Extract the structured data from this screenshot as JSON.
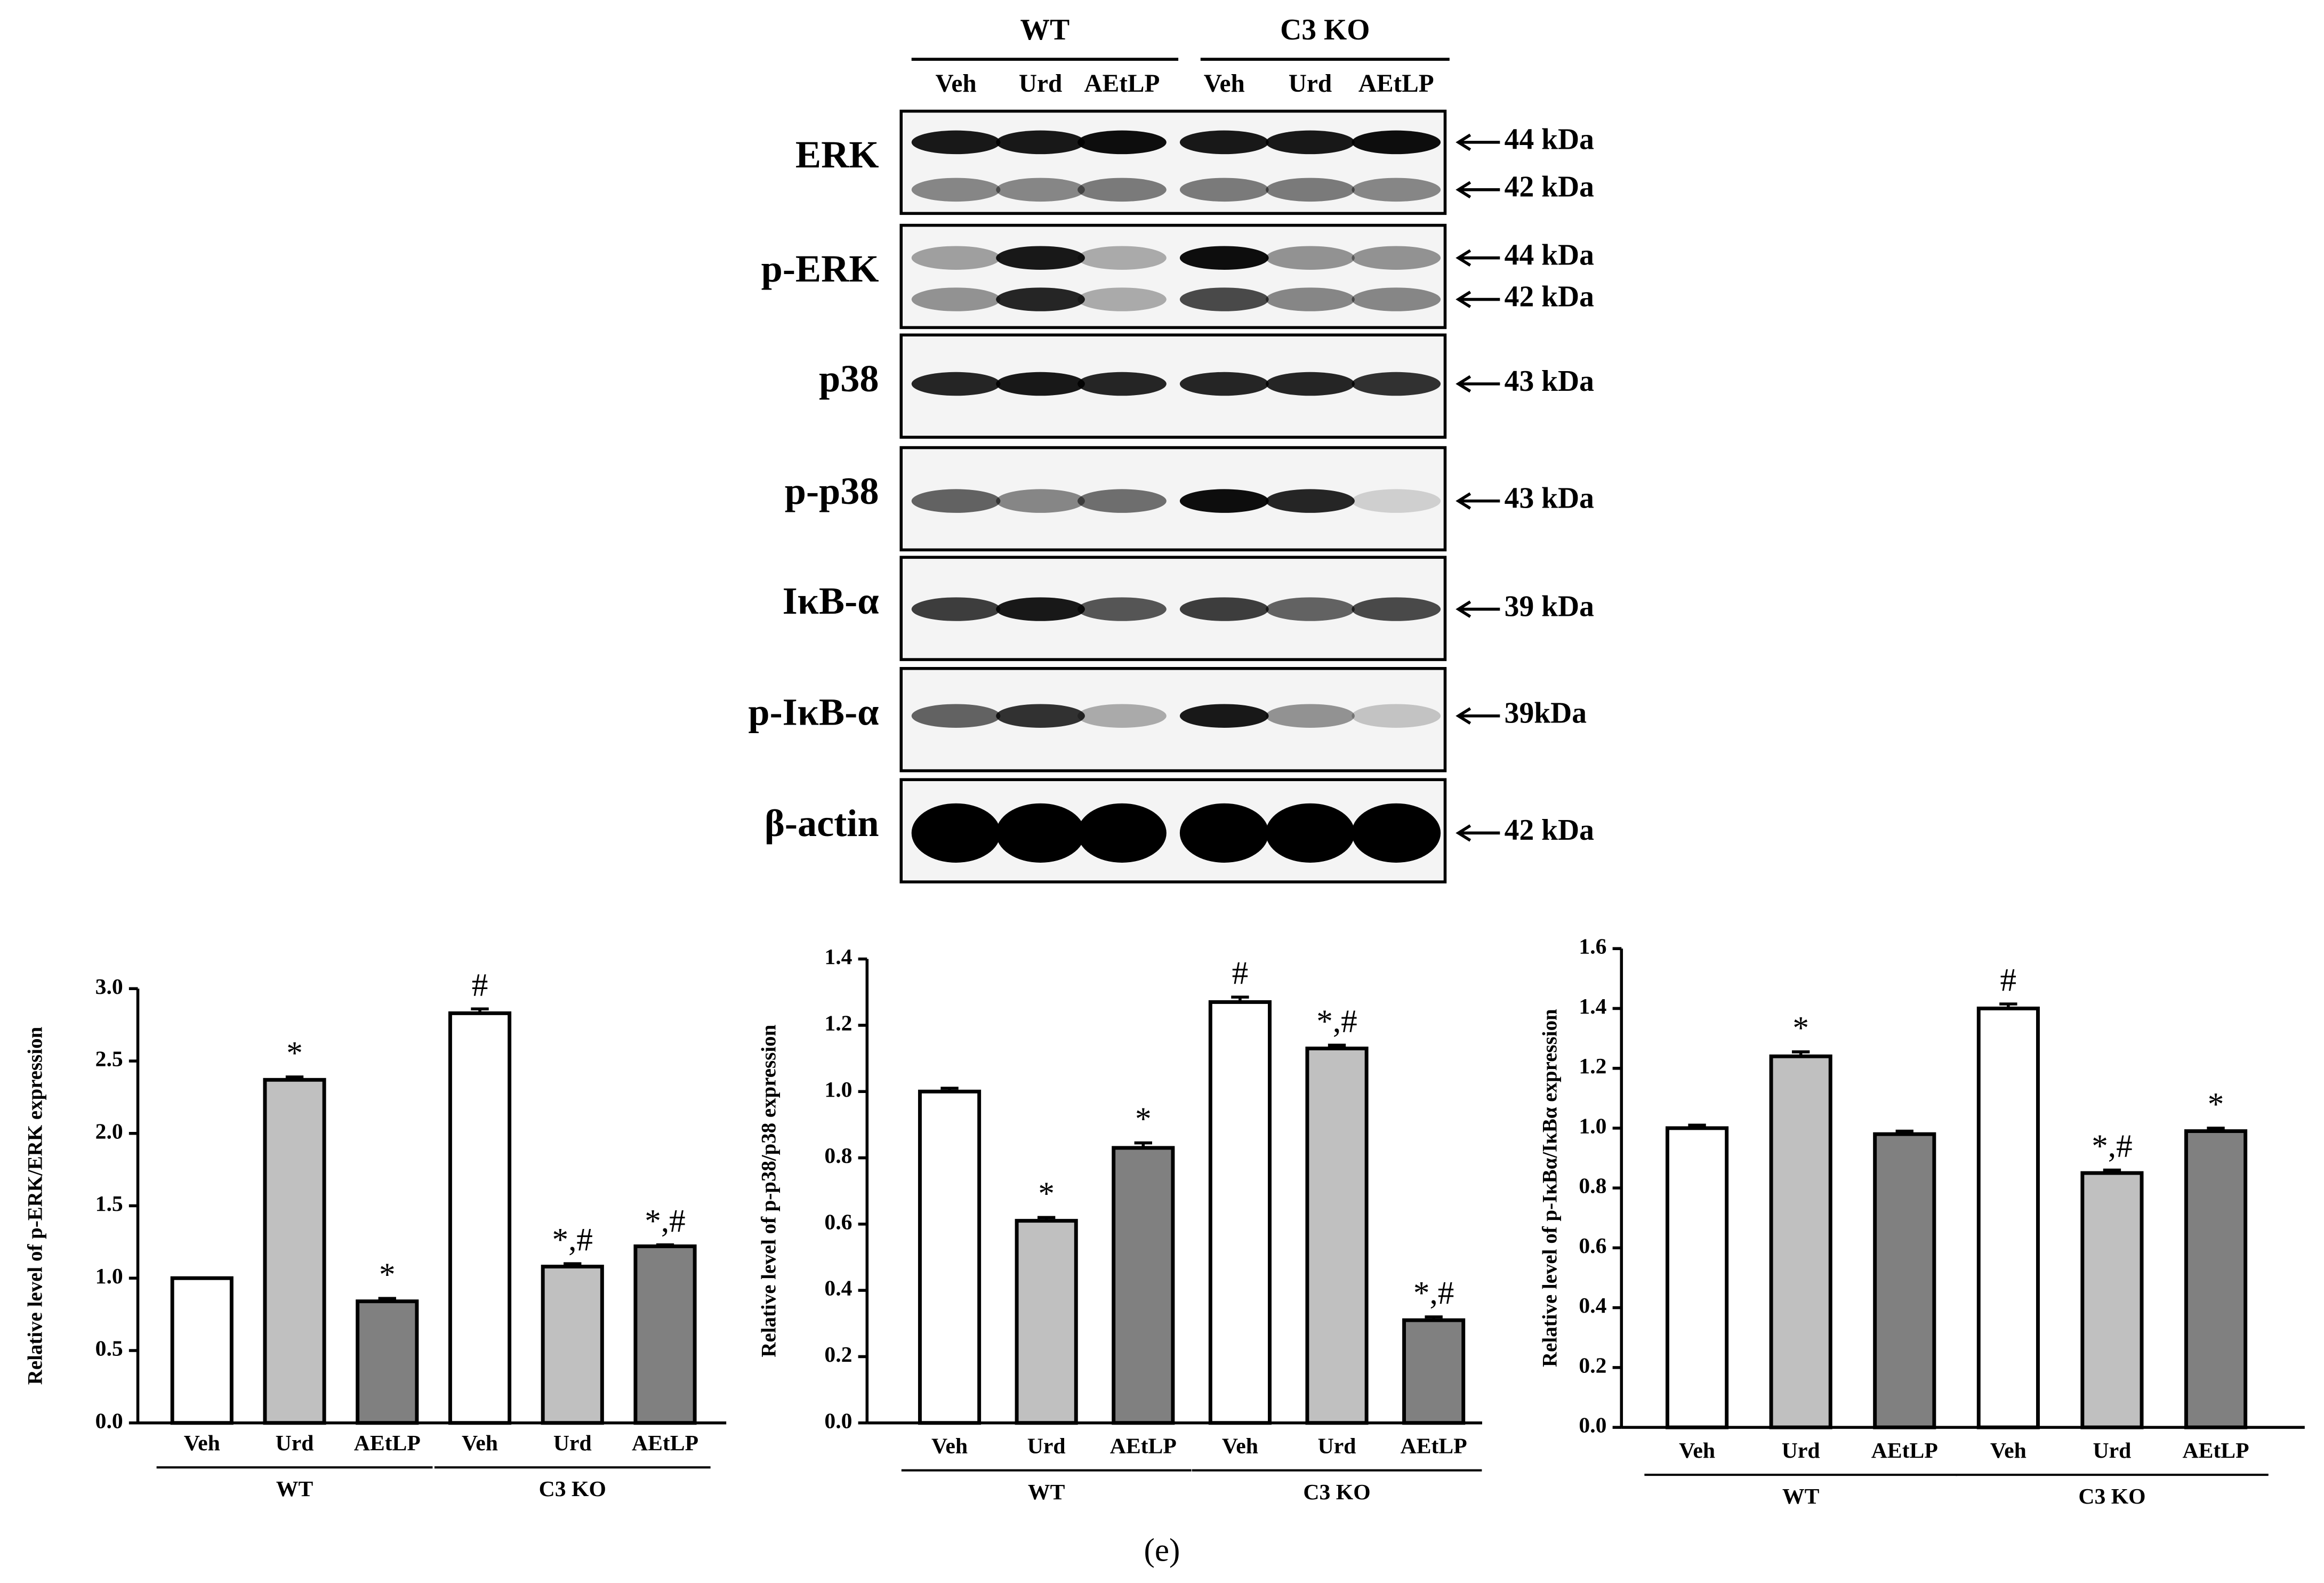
{
  "blot": {
    "groups": [
      "WT",
      "C3 KO"
    ],
    "lanes": [
      "Veh",
      "Urd",
      "AEtLP",
      "Veh",
      "Urd",
      "AEtLP"
    ],
    "rows": [
      {
        "label": "ERK",
        "markers": [
          "44 kDa",
          "42 kDa"
        ]
      },
      {
        "label": "p-ERK",
        "markers": [
          "44 kDa",
          "42 kDa"
        ]
      },
      {
        "label": "p38",
        "markers": [
          "43 kDa"
        ]
      },
      {
        "label": "p-p38",
        "markers": [
          "43 kDa"
        ]
      },
      {
        "label": "IκB-α",
        "markers": [
          "39 kDa"
        ]
      },
      {
        "label": "p-IκB-α",
        "markers": [
          "39kDa"
        ]
      },
      {
        "label": "β-actin",
        "markers": [
          "42 kDa"
        ]
      }
    ]
  },
  "chart_data": [
    {
      "type": "bar",
      "y_label": "Relative level of p-ERK/ERK expression",
      "categories": [
        "Veh",
        "Urd",
        "AEtLP",
        "Veh",
        "Urd",
        "AEtLP"
      ],
      "groups": [
        "WT",
        "C3 KO"
      ],
      "values": [
        1.0,
        2.37,
        0.84,
        2.83,
        1.08,
        1.22
      ],
      "errors": [
        0.0,
        0.02,
        0.02,
        0.03,
        0.02,
        0.01
      ],
      "colors": [
        "#ffffff",
        "#c0c0c0",
        "#808080",
        "#ffffff",
        "#c0c0c0",
        "#808080"
      ],
      "annotations": [
        null,
        "*",
        "*",
        "#",
        "*,#",
        "*,#"
      ],
      "ylim": [
        0,
        3.0
      ],
      "yticks": [
        {
          "value": 0,
          "label": "0.0"
        },
        0.5,
        {
          "value": 1,
          "label": "1.0"
        },
        1.5,
        {
          "value": 2,
          "label": "2.0"
        },
        2.5,
        {
          "value": 3,
          "label": "3.0"
        }
      ]
    },
    {
      "type": "bar",
      "y_label": "Relative level of p-p38/p38 expression",
      "categories": [
        "Veh",
        "Urd",
        "AEtLP",
        "Veh",
        "Urd",
        "AEtLP"
      ],
      "groups": [
        "WT",
        "C3 KO"
      ],
      "values": [
        1.0,
        0.61,
        0.83,
        1.27,
        1.13,
        0.31
      ],
      "errors": [
        0.01,
        0.01,
        0.015,
        0.015,
        0.01,
        0.01
      ],
      "colors": [
        "#ffffff",
        "#c0c0c0",
        "#808080",
        "#ffffff",
        "#c0c0c0",
        "#808080"
      ],
      "annotations": [
        null,
        "*",
        "*",
        "#",
        "*,#",
        "*,#"
      ],
      "ylim": [
        0,
        1.4
      ],
      "yticks": [
        {
          "value": 0,
          "label": "0.0"
        },
        0.2,
        0.4,
        0.6,
        0.8,
        {
          "value": 1,
          "label": "1.0"
        },
        1.2,
        1.4
      ]
    },
    {
      "type": "bar",
      "y_label": "Relative level of p-IκBα/IκBα expression",
      "categories": [
        "Veh",
        "Urd",
        "AEtLP",
        "Veh",
        "Urd",
        "AEtLP"
      ],
      "groups": [
        "WT",
        "C3 KO"
      ],
      "values": [
        1.0,
        1.24,
        0.98,
        1.4,
        0.85,
        0.99
      ],
      "errors": [
        0.01,
        0.015,
        0.01,
        0.015,
        0.01,
        0.01
      ],
      "colors": [
        "#ffffff",
        "#c0c0c0",
        "#808080",
        "#ffffff",
        "#c0c0c0",
        "#808080"
      ],
      "annotations": [
        null,
        "*",
        null,
        "#",
        "*,#",
        "*"
      ],
      "ylim": [
        0,
        1.6
      ],
      "yticks": [
        {
          "value": 0,
          "label": "0.0"
        },
        0.2,
        0.4,
        0.6,
        0.8,
        {
          "value": 1,
          "label": "1.0"
        },
        1.2,
        1.4,
        1.6
      ]
    }
  ],
  "caption": "(e)"
}
